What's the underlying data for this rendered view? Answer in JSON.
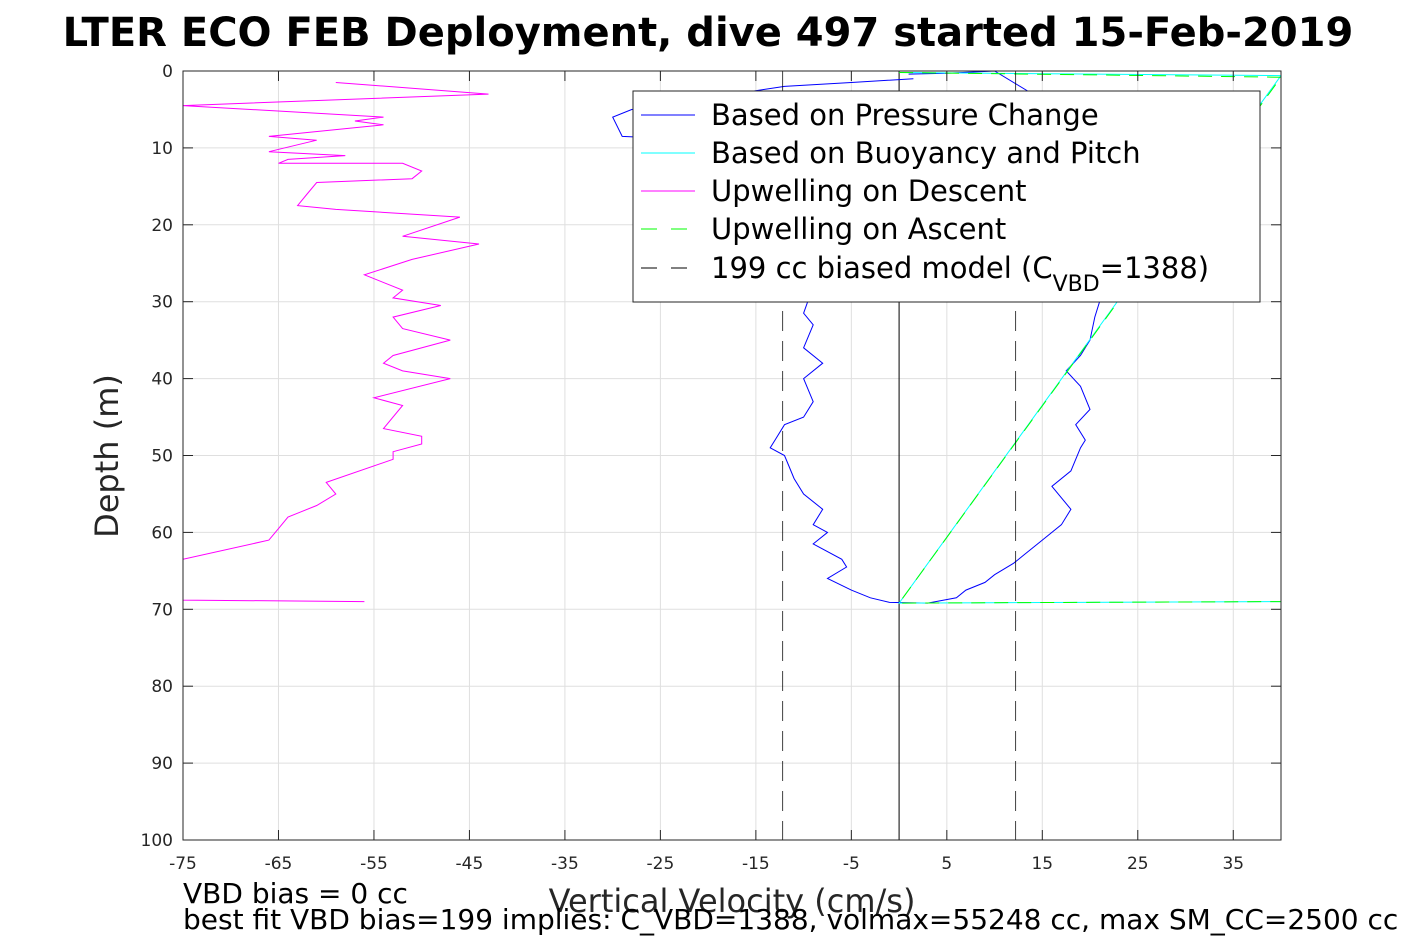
{
  "chart_data": {
    "type": "line",
    "title": "LTER ECO FEB Deployment, dive 497 started 15-Feb-2019",
    "xlabel": "Vertical Velocity (cm/s)",
    "ylabel": "Depth (m)",
    "xlim": [
      -75,
      40
    ],
    "ylim": [
      0,
      100
    ],
    "y_reversed": true,
    "grid": true,
    "legend_position": "top-right",
    "xticks": [
      -75,
      -65,
      -55,
      -45,
      -35,
      -25,
      -15,
      -5,
      5,
      15,
      25,
      35
    ],
    "yticks": [
      0,
      10,
      20,
      30,
      40,
      50,
      60,
      70,
      80,
      90,
      100
    ],
    "series": [
      {
        "name": "Based on Pressure Change",
        "color": "#0000ff",
        "style": "solid",
        "points": [
          [
            1.5,
            1.0
          ],
          [
            -5,
            1.5
          ],
          [
            -12,
            2.0
          ],
          [
            -28,
            5.0
          ],
          [
            -30,
            6.0
          ],
          [
            -29,
            8.5
          ],
          [
            -20,
            9.0
          ],
          [
            -15,
            11.0
          ],
          [
            -12,
            13.0
          ],
          [
            -11,
            16.0
          ],
          [
            -9.5,
            20.0
          ],
          [
            -10.5,
            24.0
          ],
          [
            -9,
            28.0
          ],
          [
            -10,
            31.5
          ],
          [
            -9,
            33.0
          ],
          [
            -10,
            36.0
          ],
          [
            -8,
            38.0
          ],
          [
            -10,
            40.0
          ],
          [
            -9,
            43.0
          ],
          [
            -10,
            45.0
          ],
          [
            -12,
            46.0
          ],
          [
            -13,
            48.0
          ],
          [
            -13.5,
            49.0
          ],
          [
            -12,
            50.0
          ],
          [
            -11.5,
            51.5
          ],
          [
            -11,
            53.0
          ],
          [
            -10,
            55.0
          ],
          [
            -8,
            57.0
          ],
          [
            -9,
            59.0
          ],
          [
            -7.5,
            60.0
          ],
          [
            -9,
            61.5
          ],
          [
            -6,
            63.5
          ],
          [
            -5.5,
            64.5
          ],
          [
            -7.5,
            66.0
          ],
          [
            -5,
            67.5
          ],
          [
            -3,
            68.5
          ],
          [
            -1,
            69.1
          ],
          [
            3,
            69.2
          ],
          [
            6,
            68.5
          ],
          [
            7,
            67.5
          ],
          [
            9,
            66.5
          ],
          [
            10,
            65.5
          ],
          [
            12,
            64.0
          ],
          [
            13,
            63.0
          ],
          [
            15,
            61.0
          ],
          [
            17,
            59.0
          ],
          [
            18,
            57.0
          ],
          [
            16,
            54.0
          ],
          [
            18,
            52.0
          ],
          [
            19,
            49.0
          ],
          [
            19.5,
            48.0
          ],
          [
            18.5,
            46.0
          ],
          [
            20,
            44.0
          ],
          [
            19,
            41.0
          ],
          [
            17.5,
            39.0
          ],
          [
            19,
            37.0
          ],
          [
            20,
            35.0
          ],
          [
            20.5,
            32.0
          ],
          [
            21,
            30.0
          ],
          [
            21,
            25.0
          ],
          [
            20,
            20.0
          ],
          [
            18,
            15.0
          ],
          [
            17,
            10.0
          ],
          [
            16,
            6.0
          ],
          [
            14,
            3.0
          ],
          [
            10,
            0.0
          ],
          [
            5,
            0.3
          ],
          [
            1,
            0.4
          ]
        ]
      },
      {
        "name": "Based on Buoyancy and Pitch",
        "color": "#00ffff",
        "style": "solid",
        "points": [
          [
            0,
            0.2
          ],
          [
            40,
            0.6
          ],
          [
            0,
            69.2
          ],
          [
            40,
            69.0
          ]
        ]
      },
      {
        "name": "Upwelling on Descent",
        "color": "#ff00ff",
        "style": "solid",
        "points": [
          [
            -59,
            1.5
          ],
          [
            -43,
            3.0
          ],
          [
            -75,
            4.5
          ],
          [
            -54,
            6.0
          ],
          [
            -57,
            6.5
          ],
          [
            -54,
            7.0
          ],
          [
            -66,
            8.5
          ],
          [
            -61,
            9.0
          ],
          [
            -66,
            10.5
          ],
          [
            -58,
            11.0
          ],
          [
            -64,
            11.5
          ],
          [
            -65,
            12.0
          ],
          [
            -52,
            12.0
          ],
          [
            -50,
            13.0
          ],
          [
            -51,
            14.0
          ],
          [
            -61,
            14.5
          ],
          [
            -62,
            16.0
          ],
          [
            -63,
            17.5
          ],
          [
            -59,
            18.0
          ],
          [
            -46,
            19.0
          ],
          [
            -52,
            21.5
          ],
          [
            -44,
            22.5
          ],
          [
            -51,
            24.5
          ],
          [
            -56,
            26.5
          ],
          [
            -52,
            28.5
          ],
          [
            -53,
            29.5
          ],
          [
            -48,
            30.5
          ],
          [
            -53,
            32.0
          ],
          [
            -52,
            33.5
          ],
          [
            -47,
            35.0
          ],
          [
            -53,
            37.0
          ],
          [
            -54,
            38.0
          ],
          [
            -52,
            39.0
          ],
          [
            -47,
            40.0
          ],
          [
            -55,
            42.5
          ],
          [
            -52,
            43.5
          ],
          [
            -54,
            46.5
          ],
          [
            -50,
            47.5
          ],
          [
            -50,
            48.5
          ],
          [
            -53,
            49.5
          ],
          [
            -53,
            50.5
          ],
          [
            -60,
            53.5
          ],
          [
            -59,
            55.0
          ],
          [
            -61,
            56.5
          ],
          [
            -63,
            57.5
          ],
          [
            -64,
            58.0
          ],
          [
            -65,
            59.5
          ],
          [
            -66,
            61.0
          ],
          [
            -75,
            63.5
          ],
          [
            -75,
            68.8
          ],
          [
            -56,
            69.0
          ]
        ]
      },
      {
        "name": "Upwelling on Ascent",
        "color": "#00ff00",
        "style": "dashed",
        "points": [
          [
            0,
            0.2
          ],
          [
            40,
            0.8
          ],
          [
            0,
            69.2
          ],
          [
            40,
            69.0
          ]
        ]
      },
      {
        "name": "199 cc biased model (C",
        "name_sub": "VBD",
        "name_tail": "=1388)",
        "color": "#000000",
        "style": "dashed",
        "vlines": [
          -12.2,
          12.2
        ]
      }
    ],
    "zero_line": 0,
    "footer_line1": "VBD bias = 0 cc",
    "footer_line2": "best fit VBD bias=199 implies: C_VBD=1388, volmax=55248 cc, max SM_CC=2500 cc"
  }
}
